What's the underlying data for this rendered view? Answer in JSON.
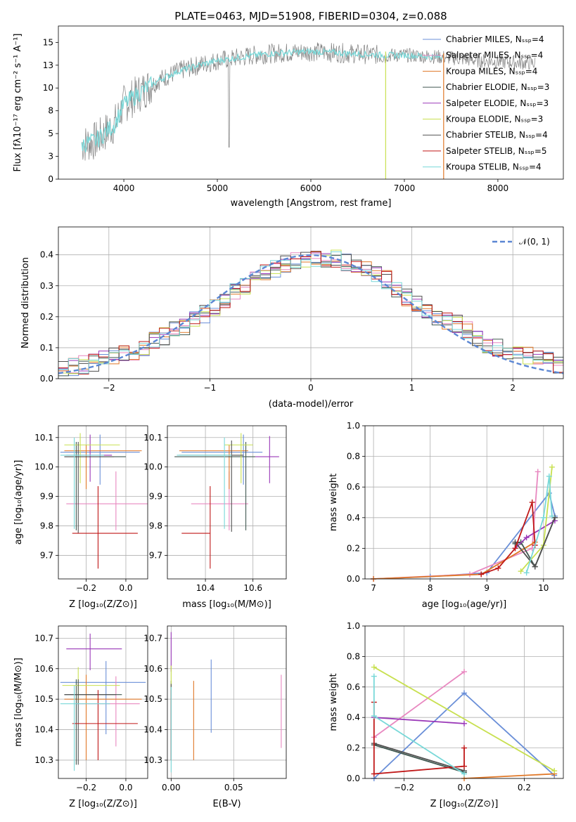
{
  "chart_data": [
    {
      "type": "line",
      "title": "PLATE=0463, MJD=51908, FIBERID=0304, z=0.088",
      "xlabel": "wavelength [Angstrom, rest frame]",
      "ylabel": "Flux [fλ10⁻¹⁷ erg cm⁻² s⁻¹ A⁻¹]",
      "xlim": [
        3300,
        8700
      ],
      "ylim": [
        0,
        16.8
      ],
      "xticks": [
        4000,
        5000,
        6000,
        7000,
        8000
      ],
      "yticks": [
        0.0,
        2.5,
        5.0,
        7.5,
        10.0,
        12.5,
        15.0
      ],
      "legend_position": "right",
      "series": [
        {
          "name": "Chabrier MILES, Nₛₛₚ=4",
          "color": "#6a8fd8"
        },
        {
          "name": "Salpeter MILES, Nₛₛₚ=4",
          "color": "#e888c0"
        },
        {
          "name": "Kroupa MILES, Nₛₛₚ=4",
          "color": "#e07828"
        },
        {
          "name": "Chabrier ELODIE, Nₛₛₚ=3",
          "color": "#405850"
        },
        {
          "name": "Salpeter ELODIE, Nₛₛₚ=3",
          "color": "#9a38b8"
        },
        {
          "name": "Kroupa ELODIE, Nₛₛₚ=3",
          "color": "#c8e050"
        },
        {
          "name": "Chabrier STELIB, Nₛₛₚ=4",
          "color": "#505050"
        },
        {
          "name": "Salpeter STELIB, Nₛₛₚ=5",
          "color": "#c01818"
        },
        {
          "name": "Kroupa STELIB, Nₛₛₚ=4",
          "color": "#78d8d8"
        }
      ],
      "data_curve": {
        "name": "data",
        "color": "#808080",
        "x": [
          3550,
          3700,
          3900,
          4000,
          4200,
          4400,
          4600,
          4800,
          5000,
          5200,
          5400,
          5600,
          5800,
          6000,
          6200,
          6400,
          6600,
          6800,
          7000,
          7200,
          7400,
          7600,
          7800,
          8000,
          8200,
          8400
        ],
        "y": [
          3.8,
          4.2,
          6.0,
          8.2,
          9.7,
          11.0,
          11.9,
          12.5,
          13.0,
          13.3,
          13.6,
          13.8,
          13.9,
          14.0,
          13.9,
          13.8,
          13.7,
          13.6,
          13.6,
          13.5,
          13.4,
          13.2,
          13.0,
          12.9,
          12.8,
          12.7
        ]
      },
      "model_curve": {
        "name": "model",
        "color": "#78d8d8",
        "x": [
          3550,
          3700,
          3900,
          4000,
          4200,
          4400,
          4600,
          4800,
          5000,
          5200,
          5400,
          5600,
          5800,
          6000,
          6200,
          6400,
          6600,
          6800,
          7000,
          7200,
          7400
        ],
        "y": [
          3.8,
          4.2,
          6.0,
          8.2,
          9.7,
          11.0,
          11.9,
          12.5,
          13.0,
          13.3,
          13.6,
          13.8,
          13.9,
          14.0,
          13.9,
          13.8,
          13.7,
          13.6,
          13.6,
          13.5,
          13.4
        ]
      }
    },
    {
      "type": "bar",
      "xlabel": "(data-model)/error",
      "ylabel": "Normed distribution",
      "xlim": [
        -2.5,
        2.5
      ],
      "ylim": [
        0,
        0.49
      ],
      "xticks": [
        -2,
        -1,
        0,
        1,
        2
      ],
      "yticks": [
        0.0,
        0.1,
        0.2,
        0.3,
        0.4
      ],
      "grid": true,
      "legend_position": "top-right",
      "gaussian": {
        "name": "𝒩(0, 1)",
        "color": "#5b86d3",
        "mean": 0,
        "sigma": 1
      },
      "x": [
        -2.5,
        -2.25,
        -2.0,
        -1.75,
        -1.5,
        -1.25,
        -1.0,
        -0.75,
        -0.5,
        -0.25,
        0.0,
        0.25,
        0.5,
        0.75,
        1.0,
        1.25,
        1.5,
        1.75,
        2.0,
        2.25,
        2.5
      ],
      "values": [
        0.03,
        0.045,
        0.065,
        0.085,
        0.13,
        0.17,
        0.22,
        0.28,
        0.33,
        0.37,
        0.39,
        0.39,
        0.36,
        0.32,
        0.25,
        0.2,
        0.17,
        0.11,
        0.085,
        0.07,
        0.035
      ]
    },
    {
      "type": "scatter",
      "xlabel": "Z [log₁₀(Z/Z⊙)]",
      "ylabel": "age  [log₁₀(age/yr)]",
      "xlim": [
        -0.34,
        0.11
      ],
      "ylim": [
        9.62,
        10.14
      ],
      "xticks": [
        -0.2,
        0.0
      ],
      "yticks": [
        9.7,
        9.8,
        9.9,
        10.0,
        10.1
      ],
      "points": [
        {
          "color": "#6a8fd8",
          "x": -0.13,
          "y": 10.05,
          "xerr": [
            0.2,
            0.2
          ],
          "yerr": [
            0.11,
            0.06
          ]
        },
        {
          "color": "#e888c0",
          "x": -0.05,
          "y": 9.875,
          "xerr": [
            0.25,
            0.2
          ],
          "yerr": [
            0.09,
            0.11
          ]
        },
        {
          "color": "#e07828",
          "x": -0.2,
          "y": 10.055,
          "xerr": [
            0.11,
            0.28
          ],
          "yerr": [
            0.13,
            0.02
          ]
        },
        {
          "color": "#405850",
          "x": -0.25,
          "y": 10.035,
          "xerr": [
            0.06,
            0.25
          ],
          "yerr": [
            0.25,
            0.05
          ]
        },
        {
          "color": "#9a38b8",
          "x": -0.18,
          "y": 10.04,
          "xerr": [
            0.12,
            0.11
          ],
          "yerr": [
            0.09,
            0.07
          ]
        },
        {
          "color": "#c8e050",
          "x": -0.23,
          "y": 10.075,
          "xerr": [
            0.08,
            0.2
          ],
          "yerr": [
            0.13,
            0.04
          ]
        },
        {
          "color": "#505050",
          "x": -0.24,
          "y": 10.035,
          "xerr": [
            0.07,
            0.18
          ],
          "yerr": [
            0.26,
            0.05
          ]
        },
        {
          "color": "#c01818",
          "x": -0.14,
          "y": 9.775,
          "xerr": [
            0.13,
            0.2
          ],
          "yerr": [
            0.12,
            0.16
          ]
        },
        {
          "color": "#78d8d8",
          "x": -0.26,
          "y": 10.04,
          "xerr": [
            0.07,
            0.15
          ],
          "yerr": [
            0.25,
            0.06
          ]
        }
      ]
    },
    {
      "type": "scatter",
      "xlabel": "mass [log₁₀(M/M⊙)]",
      "ylabel": "",
      "xlim": [
        10.24,
        10.74
      ],
      "ylim": [
        9.62,
        10.14
      ],
      "xticks": [
        10.4,
        10.6
      ],
      "yticks": [
        9.7,
        9.8,
        9.9,
        10.0,
        10.1
      ],
      "points": [
        {
          "color": "#6a8fd8",
          "x": 10.56,
          "y": 10.05,
          "xerr": [
            0.26,
            0.08
          ],
          "yerr": [
            0.11,
            0.06
          ]
        },
        {
          "color": "#e888c0",
          "x": 10.5,
          "y": 9.875,
          "xerr": [
            0.16,
            0.08
          ],
          "yerr": [
            0.09,
            0.11
          ]
        },
        {
          "color": "#e07828",
          "x": 10.5,
          "y": 10.055,
          "xerr": [
            0.21,
            0.08
          ],
          "yerr": [
            0.13,
            0.02
          ]
        },
        {
          "color": "#405850",
          "x": 10.57,
          "y": 10.035,
          "xerr": [
            0.3,
            0.04
          ],
          "yerr": [
            0.25,
            0.05
          ]
        },
        {
          "color": "#9a38b8",
          "x": 10.67,
          "y": 10.035,
          "xerr": [
            0.06,
            0.04
          ],
          "yerr": [
            0.09,
            0.07
          ]
        },
        {
          "color": "#c8e050",
          "x": 10.55,
          "y": 10.075,
          "xerr": [
            0.07,
            0.05
          ],
          "yerr": [
            0.13,
            0.04
          ]
        },
        {
          "color": "#505050",
          "x": 10.51,
          "y": 10.04,
          "xerr": [
            0.22,
            0.05
          ],
          "yerr": [
            0.26,
            0.05
          ]
        },
        {
          "color": "#c01818",
          "x": 10.42,
          "y": 9.775,
          "xerr": [
            0.12,
            0.0
          ],
          "yerr": [
            0.12,
            0.16
          ]
        },
        {
          "color": "#78d8d8",
          "x": 10.48,
          "y": 10.04,
          "xerr": [
            0.2,
            0.03
          ],
          "yerr": [
            0.25,
            0.06
          ]
        }
      ]
    },
    {
      "type": "line",
      "xlabel": "age  [log₁₀(age/yr)]",
      "ylabel": "mass weight",
      "xlim": [
        6.85,
        10.35
      ],
      "ylim": [
        0,
        1.0
      ],
      "xticks": [
        7,
        8,
        9,
        10
      ],
      "yticks": [
        0.0,
        0.2,
        0.4,
        0.6,
        0.8,
        1.0
      ],
      "grid": true,
      "series": [
        {
          "color": "#6a8fd8",
          "x": [
            7.0,
            8.0,
            9.0,
            10.1,
            10.2
          ],
          "y": [
            0.0,
            0.015,
            0.04,
            0.56,
            0.41
          ]
        },
        {
          "color": "#e888c0",
          "x": [
            7.0,
            8.7,
            9.8,
            9.9
          ],
          "y": [
            0.0,
            0.03,
            0.2,
            0.7
          ]
        },
        {
          "color": "#e07828",
          "x": [
            7.0,
            8.9,
            9.85
          ],
          "y": [
            0.0,
            0.03,
            0.24
          ]
        },
        {
          "color": "#405850",
          "x": [
            9.5,
            9.6,
            9.85,
            10.2
          ],
          "y": [
            0.23,
            0.24,
            0.08,
            0.4
          ]
        },
        {
          "color": "#9a38b8",
          "x": [
            9.5,
            9.7,
            10.2
          ],
          "y": [
            0.2,
            0.27,
            0.38
          ]
        },
        {
          "color": "#c8e050",
          "x": [
            9.6,
            10.0,
            10.15
          ],
          "y": [
            0.05,
            0.22,
            0.73
          ]
        },
        {
          "color": "#505050",
          "x": [
            9.5,
            9.85,
            10.2
          ],
          "y": [
            0.24,
            0.08,
            0.4
          ]
        },
        {
          "color": "#c01818",
          "x": [
            8.9,
            9.2,
            9.5,
            9.8,
            9.85
          ],
          "y": [
            0.03,
            0.07,
            0.2,
            0.5,
            0.22
          ]
        },
        {
          "color": "#78d8d8",
          "x": [
            9.7,
            10.0,
            10.1,
            10.15
          ],
          "y": [
            0.04,
            0.4,
            0.67,
            0.41
          ]
        }
      ]
    },
    {
      "type": "scatter",
      "xlabel": "Z [log₁₀(Z/Z⊙)]",
      "ylabel": "mass [log₁₀(M/M⊙)]",
      "xlim": [
        -0.34,
        0.11
      ],
      "ylim": [
        10.24,
        10.74
      ],
      "xticks": [
        -0.2,
        0.0
      ],
      "yticks": [
        10.3,
        10.4,
        10.5,
        10.6,
        10.7
      ],
      "points": [
        {
          "color": "#6a8fd8",
          "x": -0.1,
          "y": 10.555,
          "xerr": [
            0.23,
            0.2
          ],
          "yerr": [
            0.17,
            0.07
          ]
        },
        {
          "color": "#e888c0",
          "x": -0.05,
          "y": 10.485,
          "xerr": [
            0.2,
            0.12
          ],
          "yerr": [
            0.14,
            0.09
          ]
        },
        {
          "color": "#e07828",
          "x": -0.2,
          "y": 10.5,
          "xerr": [
            0.11,
            0.28
          ],
          "yerr": [
            0.2,
            0.08
          ]
        },
        {
          "color": "#405850",
          "x": -0.25,
          "y": 10.515,
          "xerr": [
            0.06,
            0.23
          ],
          "yerr": [
            0.23,
            0.05
          ]
        },
        {
          "color": "#9a38b8",
          "x": -0.18,
          "y": 10.665,
          "xerr": [
            0.12,
            0.16
          ],
          "yerr": [
            0.07,
            0.05
          ]
        },
        {
          "color": "#c8e050",
          "x": -0.24,
          "y": 10.545,
          "xerr": [
            0.08,
            0.21
          ],
          "yerr": [
            0.06,
            0.06
          ]
        },
        {
          "color": "#505050",
          "x": -0.24,
          "y": 10.515,
          "xerr": [
            0.07,
            0.19
          ],
          "yerr": [
            0.23,
            0.05
          ]
        },
        {
          "color": "#c01818",
          "x": -0.14,
          "y": 10.42,
          "xerr": [
            0.13,
            0.2
          ],
          "yerr": [
            0.12,
            0.11
          ]
        },
        {
          "color": "#78d8d8",
          "x": -0.26,
          "y": 10.485,
          "xerr": [
            0.07,
            0.18
          ],
          "yerr": [
            0.22,
            0.06
          ]
        }
      ]
    },
    {
      "type": "scatter",
      "xlabel": "E(B-V)",
      "ylabel": "",
      "xlim": [
        -0.003,
        0.092
      ],
      "ylim": [
        10.24,
        10.74
      ],
      "xticks": [
        0.0,
        0.05
      ],
      "yticks": [
        10.3,
        10.4,
        10.5,
        10.6,
        10.7
      ],
      "points": [
        {
          "color": "#6a8fd8",
          "x": 0.032,
          "y": 10.5,
          "yerr": [
            0.11,
            0.13
          ]
        },
        {
          "color": "#e888c0",
          "x": 0.088,
          "y": 10.46,
          "yerr": [
            0.12,
            0.12
          ]
        },
        {
          "color": "#e07828",
          "x": 0.018,
          "y": 10.43,
          "yerr": [
            0.13,
            0.13
          ]
        },
        {
          "color": "#405850",
          "x": 0.0,
          "y": 10.5,
          "yerr": [
            0.2,
            0.06
          ]
        },
        {
          "color": "#9a38b8",
          "x": 0.0,
          "y": 10.67,
          "yerr": [
            0.08,
            0.05
          ]
        },
        {
          "color": "#c8e050",
          "x": 0.0,
          "y": 10.55,
          "yerr": [
            0.07,
            0.06
          ]
        },
        {
          "color": "#505050",
          "x": 0.0,
          "y": 10.5,
          "yerr": [
            0.2,
            0.05
          ]
        },
        {
          "color": "#c01818",
          "x": 0.0,
          "y": 10.42,
          "yerr": [
            0.12,
            0.11
          ]
        },
        {
          "color": "#78d8d8",
          "x": 0.0,
          "y": 10.48,
          "yerr": [
            0.22,
            0.06
          ]
        }
      ]
    },
    {
      "type": "line",
      "xlabel": "Z [log₁₀(Z/Z⊙)]",
      "ylabel": "mass weight",
      "xlim": [
        -0.33,
        0.33
      ],
      "ylim": [
        0,
        1.0
      ],
      "xticks": [
        -0.2,
        0.0,
        0.2
      ],
      "yticks": [
        0.0,
        0.2,
        0.4,
        0.6,
        0.8,
        1.0
      ],
      "grid": true,
      "series": [
        {
          "color": "#6a8fd8",
          "x": [
            -0.3,
            0.0,
            0.3
          ],
          "y": [
            0.0,
            0.56,
            0.02
          ]
        },
        {
          "color": "#e888c0",
          "x": [
            -0.3,
            0.0
          ],
          "y": [
            0.27,
            0.7
          ]
        },
        {
          "color": "#e07828",
          "x": [
            0.0,
            0.3
          ],
          "y": [
            0.0,
            0.03
          ]
        },
        {
          "color": "#405850",
          "x": [
            -0.3,
            0.0
          ],
          "y": [
            0.22,
            0.04
          ]
        },
        {
          "color": "#9a38b8",
          "x": [
            -0.3,
            0.0
          ],
          "y": [
            0.4,
            0.36
          ]
        },
        {
          "color": "#c8e050",
          "x": [
            -0.3,
            0.3
          ],
          "y": [
            0.73,
            0.05
          ]
        },
        {
          "color": "#505050",
          "x": [
            -0.3,
            0.0
          ],
          "y": [
            0.23,
            0.05
          ]
        },
        {
          "color": "#c01818",
          "x": [
            -0.3,
            -0.3,
            0.0,
            0.0
          ],
          "y": [
            0.5,
            0.03,
            0.08,
            0.2
          ]
        },
        {
          "color": "#78d8d8",
          "x": [
            -0.3,
            -0.3,
            0.0
          ],
          "y": [
            0.67,
            0.41,
            0.03
          ]
        }
      ]
    }
  ]
}
